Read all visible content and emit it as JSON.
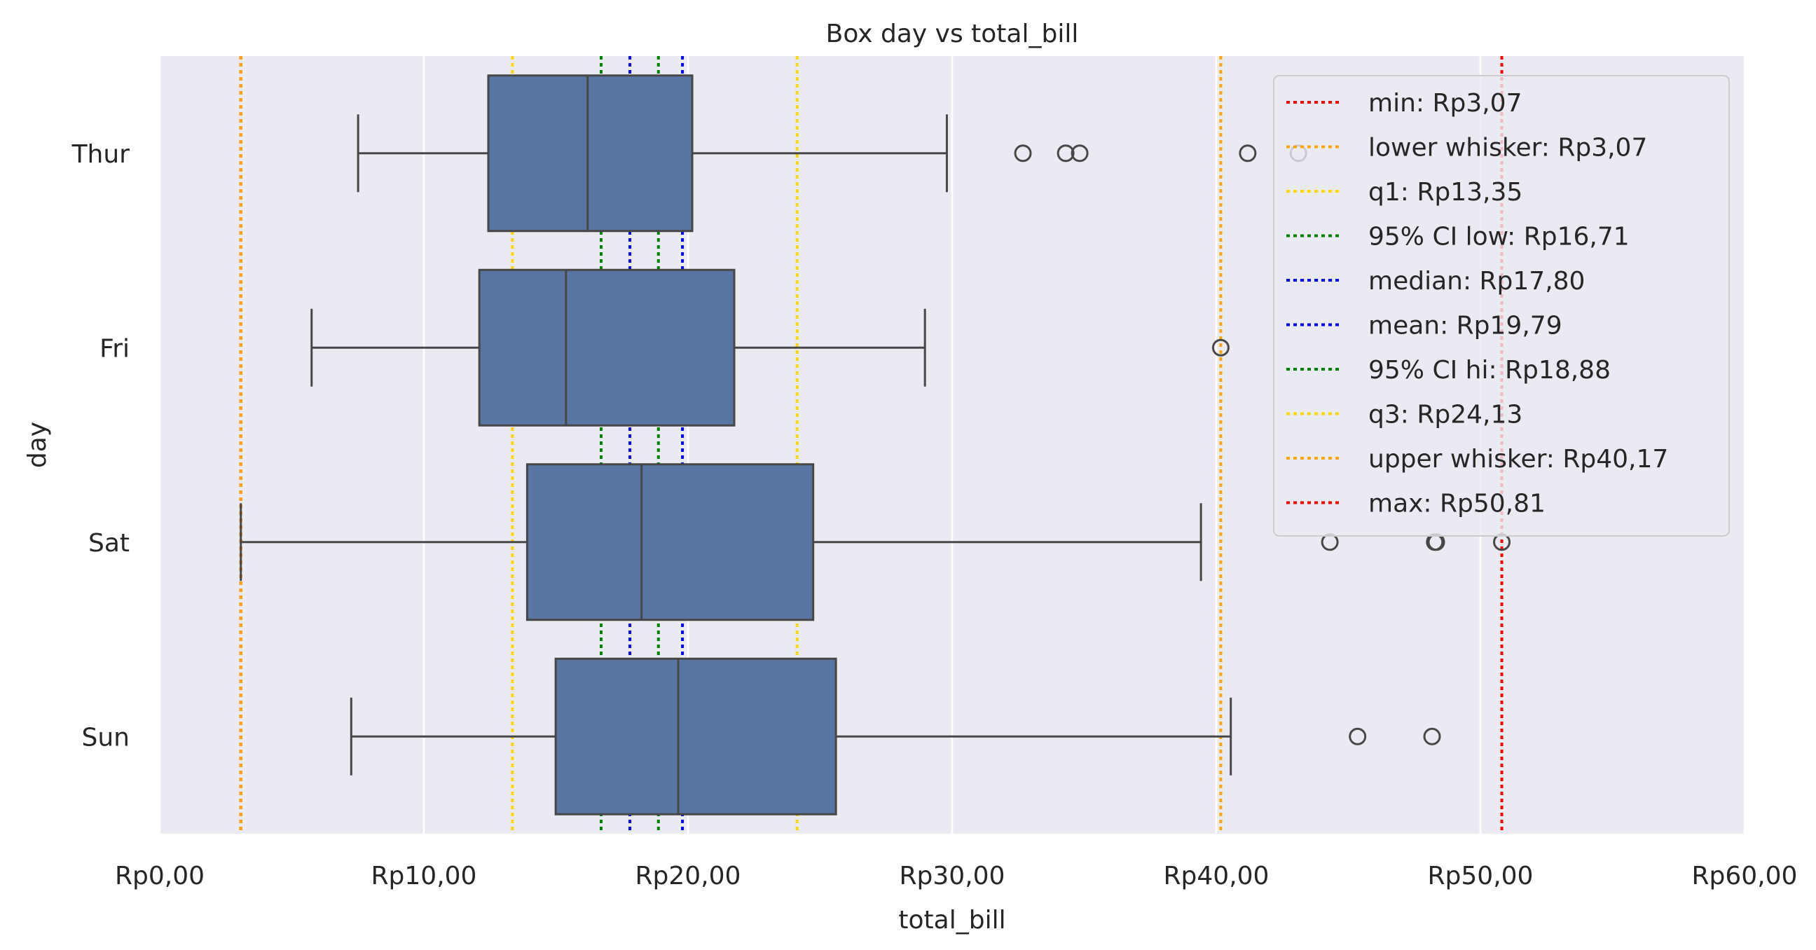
{
  "chart_data": {
    "type": "box",
    "title": "Box day vs total_bill",
    "xlabel": "total_bill",
    "ylabel": "day",
    "xlim": [
      0,
      60
    ],
    "x_ticks": [
      0,
      10,
      20,
      30,
      40,
      50,
      60
    ],
    "x_tick_labels": [
      "Rp0,00",
      "Rp10,00",
      "Rp20,00",
      "Rp30,00",
      "Rp40,00",
      "Rp50,00",
      "Rp60,00"
    ],
    "grid": true,
    "legend_position": "top-right",
    "categories": [
      "Thur",
      "Fri",
      "Sat",
      "Sun"
    ],
    "boxes": [
      {
        "category": "Thur",
        "whisker_low": 7.51,
        "q1": 12.44,
        "median": 16.2,
        "q3": 20.16,
        "whisker_high": 29.8,
        "outliers": [
          32.68,
          34.3,
          34.83,
          41.19,
          43.11
        ]
      },
      {
        "category": "Fri",
        "whisker_low": 5.75,
        "q1": 12.1,
        "median": 15.38,
        "q3": 21.75,
        "whisker_high": 28.97,
        "outliers": [
          40.17
        ]
      },
      {
        "category": "Sat",
        "whisker_low": 3.07,
        "q1": 13.91,
        "median": 18.24,
        "q3": 24.74,
        "whisker_high": 39.42,
        "outliers": [
          44.3,
          48.27,
          48.33,
          50.81
        ]
      },
      {
        "category": "Sun",
        "whisker_low": 7.25,
        "q1": 14.99,
        "median": 19.63,
        "q3": 25.6,
        "whisker_high": 40.55,
        "outliers": [
          45.35,
          48.17
        ]
      }
    ],
    "reference_lines": [
      {
        "label": "min: Rp3,07",
        "value": 3.07,
        "color": "#ff0000"
      },
      {
        "label": "lower whisker: Rp3,07",
        "value": 3.07,
        "color": "#ffa500"
      },
      {
        "label": "q1: Rp13,35",
        "value": 13.35,
        "color": "#ffd700"
      },
      {
        "label": "95% CI low: Rp16,71",
        "value": 16.71,
        "color": "#008000"
      },
      {
        "label": "median: Rp17,80",
        "value": 17.8,
        "color": "#0000ff"
      },
      {
        "label": "mean: Rp19,79",
        "value": 19.79,
        "color": "#0000ff"
      },
      {
        "label": "95% CI hi: Rp18,88",
        "value": 18.88,
        "color": "#008000"
      },
      {
        "label": "q3: Rp24,13",
        "value": 24.13,
        "color": "#ffd700"
      },
      {
        "label": "upper whisker: Rp40,17",
        "value": 40.17,
        "color": "#ffa500"
      },
      {
        "label": "max: Rp50,81",
        "value": 50.81,
        "color": "#ff0000"
      }
    ],
    "colors": {
      "box_fill": "#5875a4",
      "box_edge": "#474747",
      "plot_background": "#eaeaf2",
      "grid": "#ffffff"
    }
  }
}
